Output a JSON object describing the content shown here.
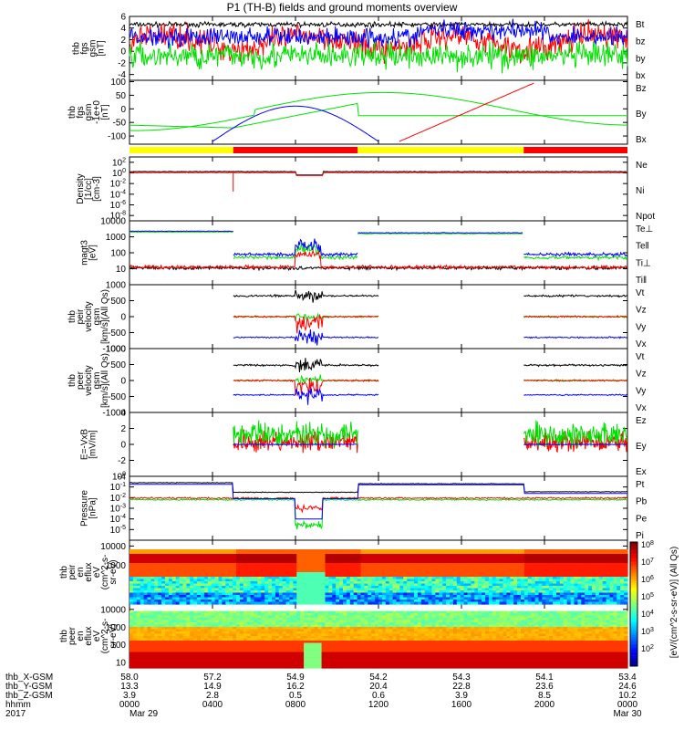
{
  "title": "P1 (TH-B) fields and ground moments overview",
  "colors": {
    "black": "#000000",
    "red": "#ff0000",
    "green": "#00e000",
    "blue": "#0000ff",
    "yellow": "#ffff00"
  },
  "time_axis": {
    "start_hour": 0,
    "end_hour": 24,
    "tick_hours": [
      0,
      4,
      8,
      12,
      16,
      20,
      24
    ],
    "row_labels": [
      "thb_X-GSM",
      "thb_Y-GSM",
      "thb_Z-GSM",
      "hhmm",
      "2017"
    ],
    "columns": [
      {
        "x": "58.0",
        "y": "13.3",
        "z": "3.9",
        "hhmm": "0000",
        "date": "Mar 29"
      },
      {
        "x": "57.2",
        "y": "14.9",
        "z": "2.8",
        "hhmm": "0400",
        "date": ""
      },
      {
        "x": "54.9",
        "y": "16.2",
        "z": "0.5",
        "hhmm": "0800",
        "date": ""
      },
      {
        "x": "54.2",
        "y": "20.4",
        "z": "0.6",
        "hhmm": "1200",
        "date": ""
      },
      {
        "x": "54.3",
        "y": "22.8",
        "z": "3.9",
        "hhmm": "1600",
        "date": ""
      },
      {
        "x": "54.1",
        "y": "23.6",
        "z": "8.5",
        "hhmm": "2000",
        "date": ""
      },
      {
        "x": "53.4",
        "y": "24.6",
        "z": "10.2",
        "hhmm": "0000",
        "date": "Mar 30"
      }
    ]
  },
  "mode_bar": {
    "segments": [
      {
        "start": 0,
        "end": 5,
        "color": "#ffff00"
      },
      {
        "start": 5,
        "end": 11,
        "color": "#ff0000"
      },
      {
        "start": 11,
        "end": 19,
        "color": "#ffff00"
      },
      {
        "start": 19,
        "end": 24,
        "color": "#ff0000"
      }
    ]
  },
  "colorbar": {
    "ticks": [
      "10^8",
      "10^7",
      "10^6",
      "10^5",
      "10^4",
      "10^3",
      "10^2"
    ],
    "label": "[eV/(cm^2-s-sr-eV)] (All Qs)"
  },
  "chart_data": [
    {
      "type": "line",
      "id": "fgs",
      "ylabel": [
        "thb",
        "fgs",
        "gsm",
        "[nT]"
      ],
      "ylim": [
        -5,
        6
      ],
      "scale": "linear",
      "ticks": [
        "6",
        "4",
        "2",
        "0",
        "-2",
        "-4"
      ],
      "series": [
        {
          "name": "Bt",
          "color": "#000000"
        },
        {
          "name": "bz",
          "color": "#ff0000"
        },
        {
          "name": "by",
          "color": "#00e000"
        },
        {
          "name": "bx",
          "color": "#0000ff"
        }
      ]
    },
    {
      "type": "line",
      "id": "pos",
      "ylabel": [
        "thb",
        "fgs",
        "gsm",
        "-1e+0",
        "[nT]"
      ],
      "ylim": [
        -130,
        105
      ],
      "scale": "linear",
      "ticks": [
        "100",
        "50",
        "0",
        "-50",
        "-100"
      ],
      "series": [
        {
          "name": "Bz",
          "color": "#ff0000"
        },
        {
          "name": "By",
          "color": "#00e000"
        },
        {
          "name": "Bx",
          "color": "#0000ff"
        }
      ]
    },
    {
      "type": "line",
      "id": "density",
      "ylabel": [
        "Density",
        "[1/cc]",
        "[cm-3]"
      ],
      "ylim": [
        -9,
        3
      ],
      "scale": "log",
      "ticks": [
        "10^2",
        "10^0",
        "10^-2",
        "10^-4",
        "10^-6",
        "10^-8"
      ],
      "series": [
        {
          "name": "Ne",
          "color": "#ff0000"
        },
        {
          "name": "Ni",
          "color": "#000000"
        },
        {
          "name": "Npot",
          "color": "#0000ff"
        }
      ]
    },
    {
      "type": "line",
      "id": "temp",
      "ylabel": [
        "magt3",
        "[eV]"
      ],
      "ylim": [
        0,
        4
      ],
      "scale": "log",
      "ticks": [
        "10000",
        "1000",
        "100",
        "10"
      ],
      "series": [
        {
          "name": "Te⊥",
          "color": "#ff0000"
        },
        {
          "name": "Te‖",
          "color": "#000000"
        },
        {
          "name": "Ti⊥",
          "color": "#0000ff"
        },
        {
          "name": "Ti‖",
          "color": "#00e000"
        }
      ]
    },
    {
      "type": "line",
      "id": "peirv",
      "ylabel": [
        "thb",
        "peir",
        "velocity",
        "gsm",
        "[km/s](All Qs)"
      ],
      "ylim": [
        -1000,
        1000
      ],
      "scale": "linear",
      "ticks": [
        "1000",
        "500",
        "0",
        "-500",
        "-1000"
      ],
      "series": [
        {
          "name": "Vt",
          "color": "#000000"
        },
        {
          "name": "Vz",
          "color": "#ff0000"
        },
        {
          "name": "Vy",
          "color": "#00e000"
        },
        {
          "name": "Vx",
          "color": "#0000ff"
        }
      ]
    },
    {
      "type": "line",
      "id": "peerv",
      "ylabel": [
        "thb",
        "peer",
        "velocity",
        "gsm",
        "[km/s](All Qs)"
      ],
      "ylim": [
        -1000,
        1000
      ],
      "scale": "linear",
      "ticks": [
        "1000",
        "500",
        "0",
        "-500",
        "-1000"
      ],
      "series": [
        {
          "name": "Vt",
          "color": "#000000"
        },
        {
          "name": "Vz",
          "color": "#ff0000"
        },
        {
          "name": "Vy",
          "color": "#00e000"
        },
        {
          "name": "Vx",
          "color": "#0000ff"
        }
      ]
    },
    {
      "type": "line",
      "id": "efield",
      "ylabel": [
        "E=-VxB",
        "[mV/m]"
      ],
      "ylim": [
        -4,
        4
      ],
      "scale": "linear",
      "ticks": [
        "4",
        "2",
        "0",
        "-2",
        "-4"
      ],
      "series": [
        {
          "name": "Ez",
          "color": "#ff0000"
        },
        {
          "name": "Ey",
          "color": "#00e000"
        },
        {
          "name": "Ex",
          "color": "#0000ff"
        }
      ]
    },
    {
      "type": "line",
      "id": "pressure",
      "ylabel": [
        "Pressure",
        "[nPa]"
      ],
      "ylim": [
        -6,
        0
      ],
      "scale": "log",
      "ticks": [
        "10^0",
        "10^-1",
        "10^-2",
        "10^-3",
        "10^-4",
        "10^-5"
      ],
      "series": [
        {
          "name": "Pt",
          "color": "#000000"
        },
        {
          "name": "Pb",
          "color": "#ff0000"
        },
        {
          "name": "Pe",
          "color": "#00e000"
        },
        {
          "name": "Pi",
          "color": "#0000ff"
        }
      ]
    },
    {
      "type": "heatmap",
      "id": "peir_en",
      "ylabel": [
        "thb",
        "peir",
        "en",
        "eflux",
        "eV",
        "(cm^2-s-",
        "sr-eV)"
      ],
      "ylim": [
        1,
        4.3
      ],
      "scale": "log",
      "ticks": [
        "10000",
        "1000"
      ]
    },
    {
      "type": "heatmap",
      "id": "peer_en",
      "ylabel": [
        "thb",
        "peer",
        "en",
        "eflux",
        "eV",
        "(cm^2-s-",
        "sr-eV)"
      ],
      "ylim": [
        0.7,
        4.3
      ],
      "scale": "log",
      "ticks": [
        "10000",
        "1000",
        "100",
        "10"
      ]
    }
  ]
}
